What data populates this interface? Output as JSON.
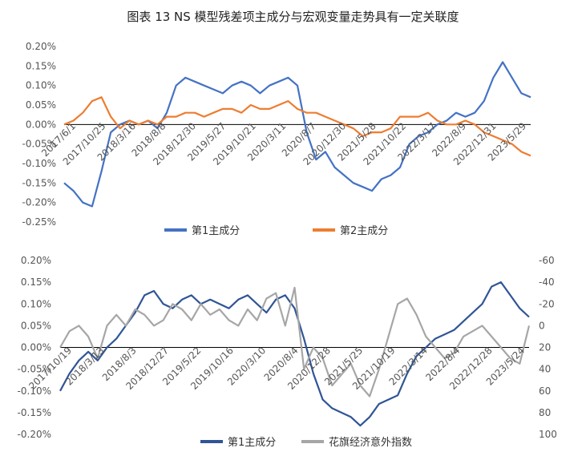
{
  "title": "图表  13 NS 模型残差项主成分与宏观变量走势具有一定关联度",
  "chart_data": [
    {
      "type": "line",
      "yticks": [
        "0.20%",
        "0.15%",
        "0.10%",
        "0.05%",
        "0.00%",
        "-0.05%",
        "-0.10%",
        "-0.15%",
        "-0.20%",
        "-0.25%"
      ],
      "ylim": [
        -0.25,
        0.2
      ],
      "xticks": [
        "2017/6/1",
        "2017/10/25",
        "2018/3/16",
        "2018/8/8",
        "2018/12/30",
        "2019/5/27",
        "2019/10/21",
        "2020/3/11",
        "2020/8/7",
        "2020/12/30",
        "2021/5/28",
        "2021/10/22",
        "2022/3/17",
        "2022/8/9",
        "2022/12/31",
        "2023/5/29"
      ],
      "legend": [
        "第1主成分",
        "第2主成分"
      ],
      "series": [
        {
          "name": "第1主成分",
          "color": "#4472C4",
          "x": [
            0,
            0.02,
            0.04,
            0.06,
            0.08,
            0.1,
            0.12,
            0.14,
            0.16,
            0.18,
            0.2,
            0.22,
            0.24,
            0.26,
            0.28,
            0.3,
            0.32,
            0.34,
            0.36,
            0.38,
            0.4,
            0.42,
            0.44,
            0.46,
            0.48,
            0.5,
            0.52,
            0.54,
            0.56,
            0.58,
            0.6,
            0.62,
            0.64,
            0.66,
            0.68,
            0.7,
            0.72,
            0.74,
            0.76,
            0.78,
            0.8,
            0.82,
            0.84,
            0.86,
            0.88,
            0.9,
            0.92,
            0.94,
            0.96,
            0.98,
            1.0
          ],
          "values": [
            -0.15,
            -0.17,
            -0.2,
            -0.21,
            -0.12,
            -0.02,
            0.0,
            0.01,
            0.0,
            0.01,
            -0.01,
            0.03,
            0.1,
            0.12,
            0.11,
            0.1,
            0.09,
            0.08,
            0.1,
            0.11,
            0.1,
            0.08,
            0.1,
            0.11,
            0.12,
            0.1,
            -0.02,
            -0.09,
            -0.07,
            -0.11,
            -0.13,
            -0.15,
            -0.16,
            -0.17,
            -0.14,
            -0.13,
            -0.11,
            -0.05,
            -0.03,
            -0.02,
            0.0,
            0.01,
            0.03,
            0.02,
            0.03,
            0.06,
            0.12,
            0.16,
            0.12,
            0.08,
            0.07
          ]
        },
        {
          "name": "第2主成分",
          "color": "#ED7D31",
          "x": [
            0,
            0.02,
            0.04,
            0.06,
            0.08,
            0.1,
            0.12,
            0.14,
            0.16,
            0.18,
            0.2,
            0.22,
            0.24,
            0.26,
            0.28,
            0.3,
            0.32,
            0.34,
            0.36,
            0.38,
            0.4,
            0.42,
            0.44,
            0.46,
            0.48,
            0.5,
            0.52,
            0.54,
            0.56,
            0.58,
            0.6,
            0.62,
            0.64,
            0.66,
            0.68,
            0.7,
            0.72,
            0.74,
            0.76,
            0.78,
            0.8,
            0.82,
            0.84,
            0.86,
            0.88,
            0.9,
            0.92,
            0.94,
            0.96,
            0.98,
            1.0
          ],
          "values": [
            0.0,
            0.01,
            0.03,
            0.06,
            0.07,
            0.02,
            -0.01,
            0.01,
            0.0,
            0.01,
            0.0,
            0.02,
            0.02,
            0.03,
            0.03,
            0.02,
            0.03,
            0.04,
            0.04,
            0.03,
            0.05,
            0.04,
            0.04,
            0.05,
            0.06,
            0.04,
            0.03,
            0.03,
            0.02,
            0.01,
            0.0,
            -0.01,
            -0.03,
            -0.02,
            -0.02,
            -0.01,
            0.02,
            0.02,
            0.02,
            0.03,
            0.01,
            0.0,
            0.0,
            0.01,
            0.0,
            -0.02,
            -0.03,
            -0.04,
            -0.05,
            -0.07,
            -0.08
          ]
        }
      ]
    },
    {
      "type": "line",
      "yticks": [
        "0.20%",
        "0.15%",
        "0.10%",
        "0.05%",
        "0.00%",
        "-0.05%",
        "-0.10%",
        "-0.15%",
        "-0.20%"
      ],
      "ylim": [
        -0.2,
        0.2
      ],
      "y2ticks": [
        "-60",
        "-40",
        "-20",
        "0",
        "20",
        "40",
        "60",
        "80",
        "100"
      ],
      "y2lim": [
        -60,
        100
      ],
      "y2_inverted": true,
      "xticks": [
        "2017/10/19",
        "2018/3/13",
        "2018/8/3",
        "2018/12/27",
        "2019/5/22",
        "2019/10/16",
        "2020/3/10",
        "2020/8/4",
        "2020/12/28",
        "2021/5/25",
        "2021/10/19",
        "2022/3/14",
        "2022/8/4",
        "2022/12/28",
        "2023/5/24"
      ],
      "legend": [
        "第1主成分",
        "花旗经济意外指数"
      ],
      "series": [
        {
          "name": "第1主成分",
          "axis": "left",
          "color": "#2F5597",
          "x": [
            0,
            0.02,
            0.04,
            0.06,
            0.08,
            0.1,
            0.12,
            0.14,
            0.16,
            0.18,
            0.2,
            0.22,
            0.24,
            0.26,
            0.28,
            0.3,
            0.32,
            0.34,
            0.36,
            0.38,
            0.4,
            0.42,
            0.44,
            0.46,
            0.48,
            0.5,
            0.52,
            0.54,
            0.56,
            0.58,
            0.6,
            0.62,
            0.64,
            0.66,
            0.68,
            0.7,
            0.72,
            0.74,
            0.76,
            0.78,
            0.8,
            0.82,
            0.84,
            0.86,
            0.88,
            0.9,
            0.92,
            0.94,
            0.96,
            0.98,
            1.0
          ],
          "values": [
            -0.1,
            -0.06,
            -0.03,
            -0.01,
            -0.03,
            0.0,
            0.02,
            0.05,
            0.08,
            0.12,
            0.13,
            0.1,
            0.09,
            0.11,
            0.12,
            0.1,
            0.11,
            0.1,
            0.09,
            0.11,
            0.12,
            0.1,
            0.08,
            0.11,
            0.12,
            0.09,
            0.02,
            -0.06,
            -0.12,
            -0.14,
            -0.15,
            -0.16,
            -0.18,
            -0.16,
            -0.13,
            -0.12,
            -0.11,
            -0.06,
            -0.02,
            0.0,
            0.02,
            0.03,
            0.04,
            0.06,
            0.08,
            0.1,
            0.14,
            0.15,
            0.12,
            0.09,
            0.07
          ]
        },
        {
          "name": "花旗经济意外指数",
          "axis": "right",
          "color": "#A6A6A6",
          "x": [
            0,
            0.02,
            0.04,
            0.06,
            0.08,
            0.1,
            0.12,
            0.14,
            0.16,
            0.18,
            0.2,
            0.22,
            0.24,
            0.26,
            0.28,
            0.3,
            0.32,
            0.34,
            0.36,
            0.38,
            0.4,
            0.42,
            0.44,
            0.46,
            0.48,
            0.5,
            0.52,
            0.54,
            0.56,
            0.58,
            0.6,
            0.62,
            0.64,
            0.66,
            0.68,
            0.7,
            0.72,
            0.74,
            0.76,
            0.78,
            0.8,
            0.82,
            0.84,
            0.86,
            0.88,
            0.9,
            0.92,
            0.94,
            0.96,
            0.98,
            1.0
          ],
          "values": [
            20,
            5,
            0,
            10,
            30,
            0,
            -10,
            0,
            -15,
            -10,
            0,
            -5,
            -20,
            -15,
            -5,
            -20,
            -10,
            -15,
            -5,
            0,
            -15,
            -5,
            -25,
            -30,
            0,
            -35,
            40,
            20,
            30,
            55,
            45,
            35,
            55,
            65,
            40,
            10,
            -20,
            -25,
            -10,
            10,
            20,
            30,
            25,
            10,
            5,
            0,
            10,
            20,
            30,
            35,
            0
          ]
        }
      ]
    }
  ]
}
